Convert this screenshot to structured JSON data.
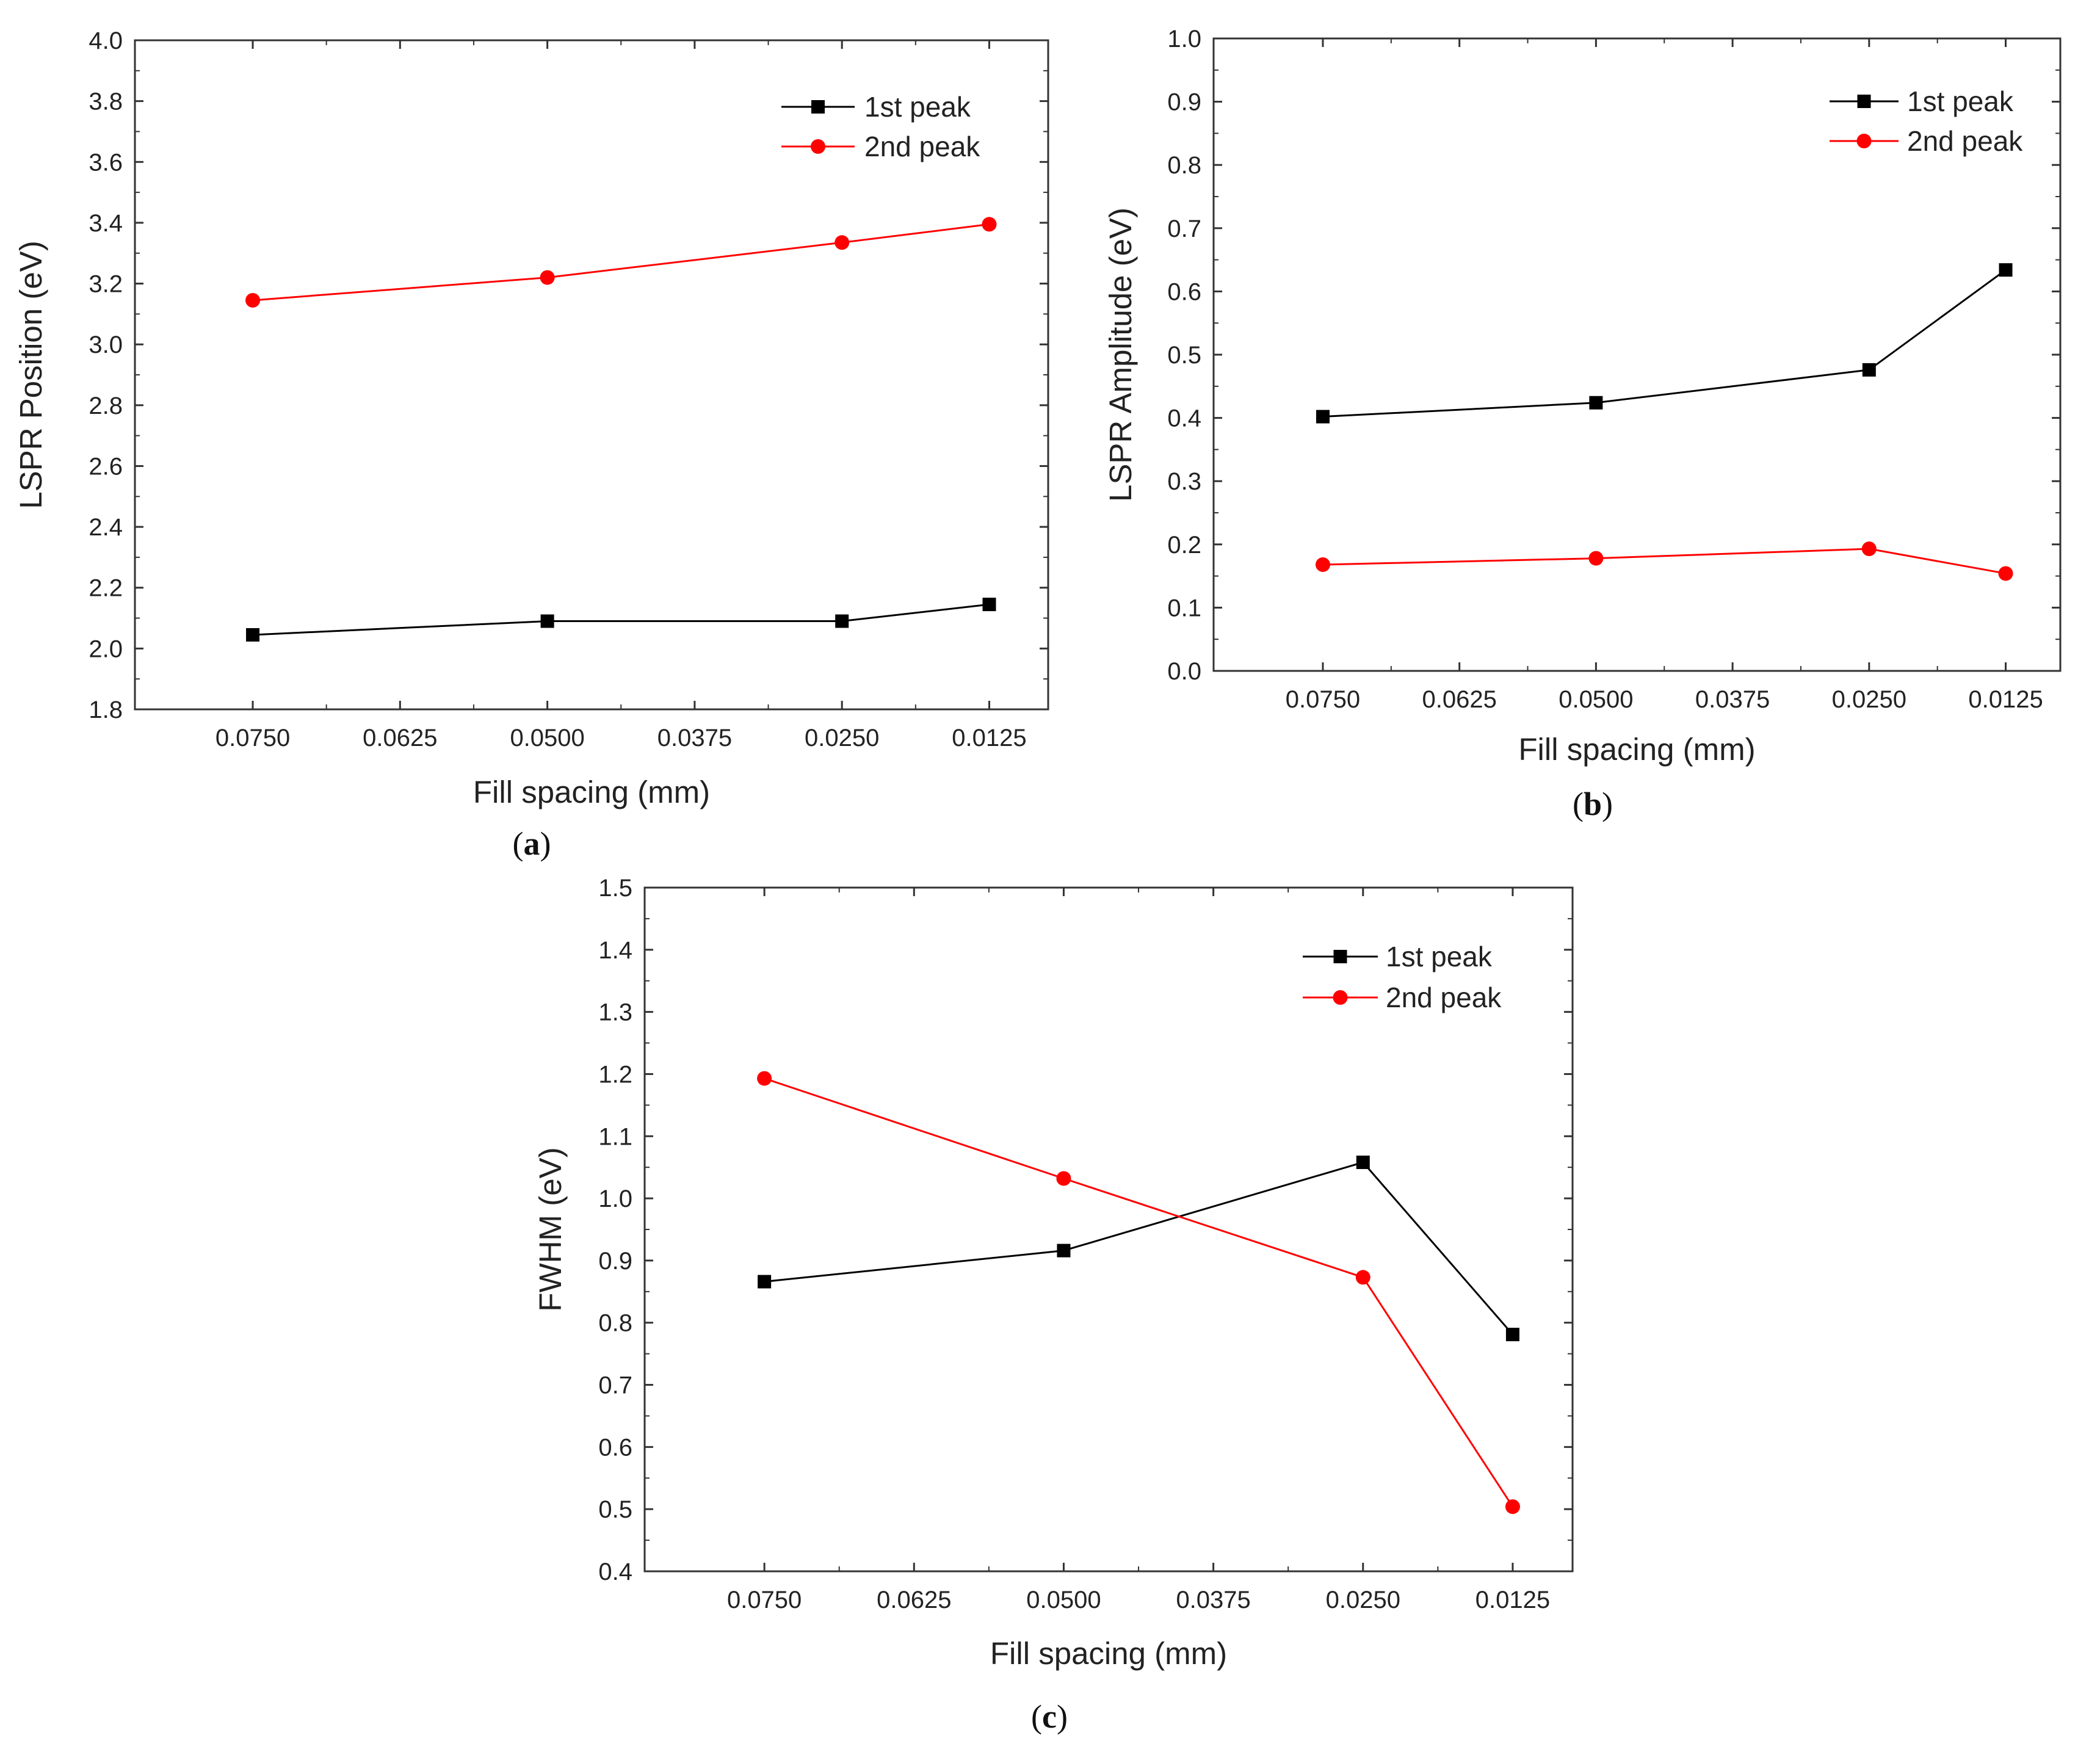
{
  "chart_data": [
    {
      "panel": "a",
      "panel_label": "a",
      "type": "line",
      "xlabel": "Fill spacing (mm)",
      "ylabel": "LSPR Position (eV)",
      "categories": [
        "0.0750",
        "0.0625",
        "0.0500",
        "0.0375",
        "0.0250",
        "0.0125"
      ],
      "x": [
        0.075,
        0.05,
        0.025,
        0.0125
      ],
      "xlim": [
        0.085,
        0.0075
      ],
      "ylim": [
        1.8,
        4.0
      ],
      "yticks": [
        "1.8",
        "2.0",
        "2.2",
        "2.4",
        "2.6",
        "2.8",
        "3.0",
        "3.2",
        "3.4",
        "3.6",
        "3.8",
        "4.0"
      ],
      "legend_position": "top-right",
      "series": [
        {
          "name": "1st peak",
          "color": "#000000",
          "marker": "square",
          "values": [
            2.045,
            2.09,
            2.09,
            2.145
          ]
        },
        {
          "name": "2nd peak",
          "color": "#ff0000",
          "marker": "circle",
          "values": [
            3.145,
            3.22,
            3.335,
            3.395
          ]
        }
      ]
    },
    {
      "panel": "b",
      "panel_label": "b",
      "type": "line",
      "xlabel": "Fill spacing (mm)",
      "ylabel": "LSPR Amplitude (eV)",
      "categories": [
        "0.0750",
        "0.0625",
        "0.0500",
        "0.0375",
        "0.0250",
        "0.0125"
      ],
      "x": [
        0.075,
        0.05,
        0.025,
        0.0125
      ],
      "xlim": [
        0.085,
        0.0075
      ],
      "ylim": [
        0.0,
        1.0
      ],
      "yticks": [
        "0.0",
        "0.1",
        "0.2",
        "0.3",
        "0.4",
        "0.5",
        "0.6",
        "0.7",
        "0.8",
        "0.9",
        "1.0"
      ],
      "legend_position": "top-right",
      "series": [
        {
          "name": "1st peak",
          "color": "#000000",
          "marker": "square",
          "values": [
            0.402,
            0.424,
            0.476,
            0.634
          ]
        },
        {
          "name": "2nd peak",
          "color": "#ff0000",
          "marker": "circle",
          "values": [
            0.168,
            0.178,
            0.193,
            0.154
          ]
        }
      ]
    },
    {
      "panel": "c",
      "panel_label": "c",
      "type": "line",
      "xlabel": "Fill spacing (mm)",
      "ylabel": "FWHM (eV)",
      "categories": [
        "0.0750",
        "0.0625",
        "0.0500",
        "0.0375",
        "0.0250",
        "0.0125"
      ],
      "x": [
        0.075,
        0.05,
        0.025,
        0.0125
      ],
      "xlim": [
        0.085,
        0.0075
      ],
      "ylim": [
        0.4,
        1.5
      ],
      "yticks": [
        "0.4",
        "0.5",
        "0.6",
        "0.7",
        "0.8",
        "0.9",
        "1.0",
        "1.1",
        "1.2",
        "1.3",
        "1.4",
        "1.5"
      ],
      "legend_position": "top-right",
      "series": [
        {
          "name": "1st peak",
          "color": "#000000",
          "marker": "square",
          "values": [
            0.866,
            0.916,
            1.058,
            0.781
          ]
        },
        {
          "name": "2nd peak",
          "color": "#ff0000",
          "marker": "circle",
          "values": [
            1.193,
            1.032,
            0.873,
            0.504
          ]
        }
      ]
    }
  ]
}
